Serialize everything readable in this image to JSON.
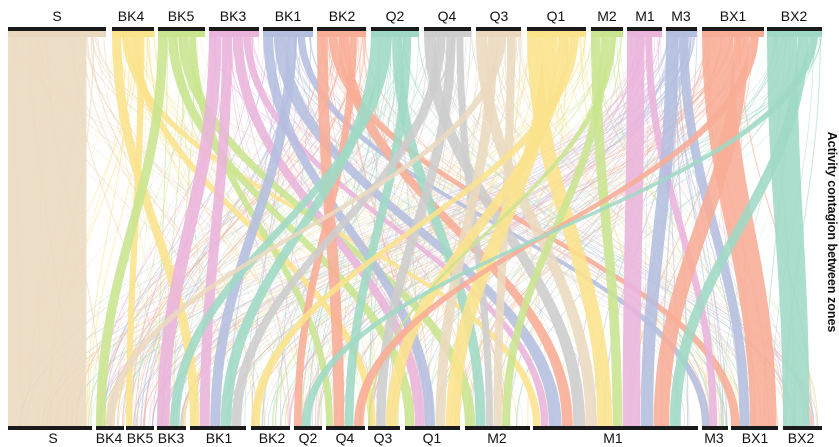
{
  "title": "Activity contagion between zones",
  "colors": {
    "S": "#ead9bf",
    "BK4": "#fbe38c",
    "BK5": "#c9e58f",
    "BK3": "#eab4dc",
    "BK1": "#b4bedf",
    "BK2": "#f8ad96",
    "Q2": "#9fd9c5",
    "Q4": "#cdcdcd",
    "Q3": "#ead9bf",
    "Q1": "#fbe38c",
    "M2": "#c9e58f",
    "M1": "#eab4dc",
    "M3": "#b4bedf",
    "BX1": "#f8ad96",
    "BX2": "#9fd9c5"
  },
  "top_nodes": [
    {
      "id": "S",
      "label": "S"
    },
    {
      "id": "BK4",
      "label": "BK4"
    },
    {
      "id": "BK5",
      "label": "BK5"
    },
    {
      "id": "BK3",
      "label": "BK3"
    },
    {
      "id": "BK1",
      "label": "BK1"
    },
    {
      "id": "BK2",
      "label": "BK2"
    },
    {
      "id": "Q2",
      "label": "Q2"
    },
    {
      "id": "Q4",
      "label": "Q4"
    },
    {
      "id": "Q3",
      "label": "Q3"
    },
    {
      "id": "Q1",
      "label": "Q1"
    },
    {
      "id": "M2",
      "label": "M2"
    },
    {
      "id": "M1",
      "label": "M1"
    },
    {
      "id": "M3",
      "label": "M3"
    },
    {
      "id": "BX1",
      "label": "BX1"
    },
    {
      "id": "BX2",
      "label": "BX2"
    }
  ],
  "bottom_nodes": [
    {
      "id": "S",
      "label": "S"
    },
    {
      "id": "BK4",
      "label": "BK4"
    },
    {
      "id": "BK5",
      "label": "BK5"
    },
    {
      "id": "BK3",
      "label": "BK3"
    },
    {
      "id": "BK1",
      "label": "BK1"
    },
    {
      "id": "BK2",
      "label": "BK2"
    },
    {
      "id": "Q2",
      "label": "Q2"
    },
    {
      "id": "Q4",
      "label": "Q4"
    },
    {
      "id": "Q3",
      "label": "Q3"
    },
    {
      "id": "Q1",
      "label": "Q1"
    },
    {
      "id": "M2",
      "label": "M2"
    },
    {
      "id": "M1",
      "label": "M1"
    },
    {
      "id": "M3",
      "label": "M3"
    },
    {
      "id": "BX1",
      "label": "BX1"
    },
    {
      "id": "BX2",
      "label": "BX2"
    }
  ]
}
